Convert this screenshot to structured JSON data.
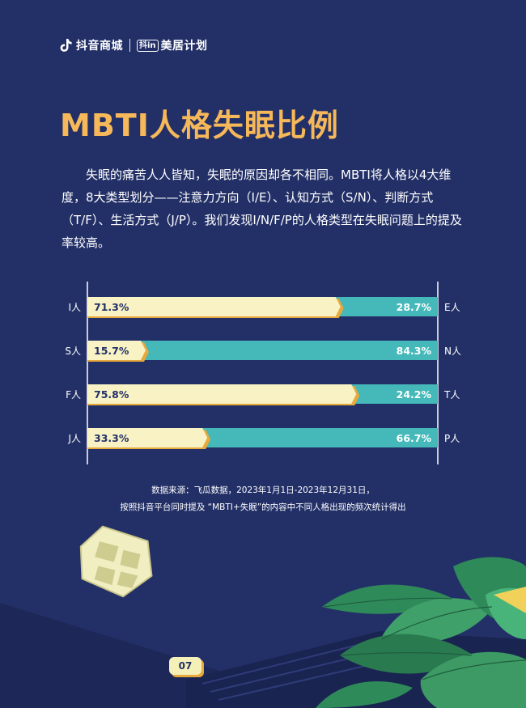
{
  "header": {
    "brand": "抖音商城",
    "badge": "抖in",
    "program": "美居计划"
  },
  "title": "MBTI人格失眠比例",
  "intro": "失眠的痛苦人人皆知，失眠的原因却各不相同。MBTI将人格以4大维度，8大类型划分——注意力方向（I/E）、认知方式（S/N）、判断方式（T/F）、生活方式（J/P）。我们发现I/N/F/P的人格类型在失眠问题上的提及率较高。",
  "colors": {
    "background": "#233067",
    "title": "#f6b859",
    "left_bar": "#f8f2c4",
    "left_bar_shadow": "#e8a93c",
    "right_bar": "#45b8b9",
    "axis": "#ffffff"
  },
  "chart_data": {
    "type": "bar",
    "orientation": "horizontal",
    "stacked": true,
    "left_categories": [
      "I人",
      "S人",
      "F人",
      "J人"
    ],
    "right_categories": [
      "E人",
      "N人",
      "T人",
      "P人"
    ],
    "series": [
      {
        "values": [
          71.3,
          15.7,
          75.8,
          33.3
        ]
      },
      {
        "values": [
          28.7,
          84.3,
          24.2,
          66.7
        ]
      }
    ],
    "labels_left": [
      "71.3%",
      "15.7%",
      "75.8%",
      "33.3%"
    ],
    "labels_right": [
      "28.7%",
      "84.3%",
      "24.2%",
      "66.7%"
    ],
    "xlim": [
      0,
      100
    ]
  },
  "source": {
    "line1": "数据来源：飞瓜数据，2023年1月1日-2023年12月31日，",
    "line2": "按照抖音平台同时提及 “MBTI+失眠”的内容中不同人格出现的频次统计得出"
  },
  "page_number": "07"
}
